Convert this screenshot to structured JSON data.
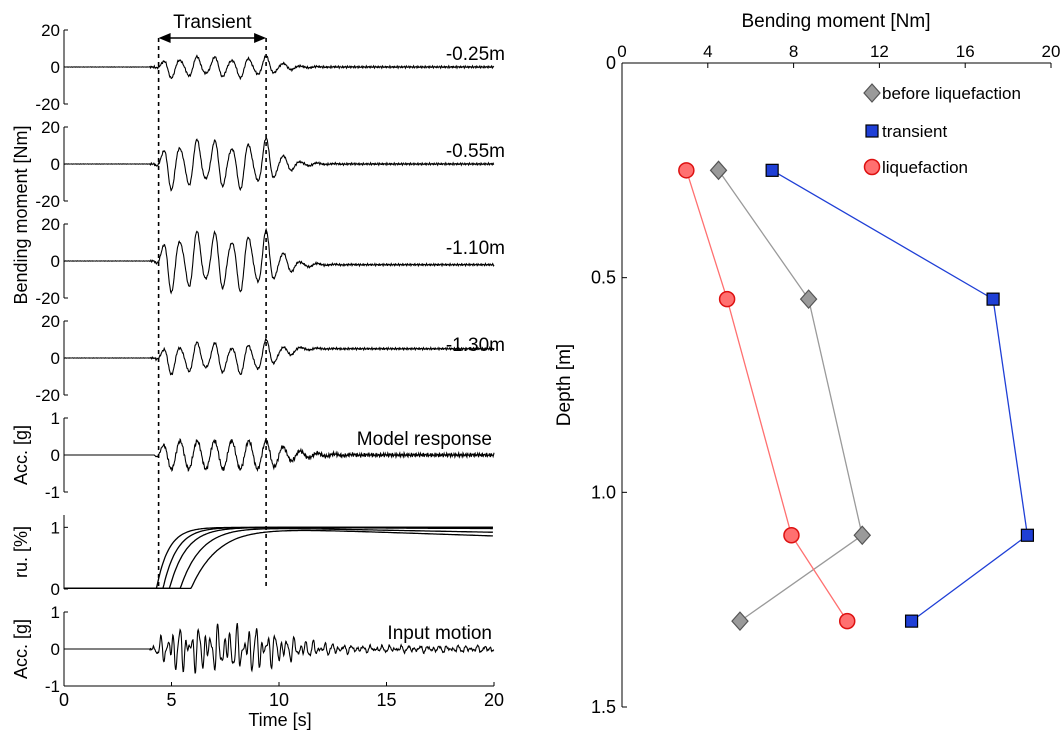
{
  "chart_data": [
    {
      "type": "line",
      "panel": "time-histories",
      "shared_xlabel": "Time [s]",
      "xlim": [
        0,
        20
      ],
      "xticks": [
        0,
        5,
        10,
        15,
        20
      ],
      "transient_label": "Transient",
      "transient_window": [
        4.4,
        9.4
      ],
      "shared_ylabel": "Bending moment [Nm]",
      "subplots": [
        {
          "label": "-0.25m",
          "ylim": [
            -20,
            20
          ],
          "yticks": [
            20,
            0,
            -20
          ],
          "amplitude": 6,
          "offset": 0
        },
        {
          "label": "-0.55m",
          "ylim": [
            -20,
            20
          ],
          "yticks": [
            20,
            0,
            -20
          ],
          "amplitude": 14,
          "offset": 0
        },
        {
          "label": "-1.10m",
          "ylim": [
            -20,
            20
          ],
          "yticks": [
            20,
            0,
            -20
          ],
          "amplitude": 17,
          "offset": -2
        },
        {
          "label": "-1.30m",
          "ylim": [
            -20,
            20
          ],
          "yticks": [
            20,
            0,
            -20
          ],
          "amplitude": 9,
          "offset": 5
        },
        {
          "label": "Model response",
          "ylabel": "Acc. [g]",
          "ylim": [
            -1,
            1
          ],
          "yticks": [
            1,
            0,
            -1
          ],
          "amplitude": 0.4
        },
        {
          "label": "",
          "ylabel": "ru. [%]",
          "ylim": [
            0,
            1.2
          ],
          "yticks": [
            1,
            0
          ],
          "series_count": 5
        },
        {
          "label": "Input motion",
          "ylabel": "Acc. [g]",
          "ylim": [
            -1,
            1
          ],
          "yticks": [
            1,
            0,
            -1
          ],
          "amplitude": 0.5
        }
      ]
    },
    {
      "type": "line",
      "panel": "profile",
      "title": "Bending moment [Nm]",
      "xlabel": "Bending moment [Nm]",
      "ylabel": "Depth [m]",
      "xlim": [
        0,
        20
      ],
      "ylim": [
        0,
        1.5
      ],
      "xticks": [
        0,
        4,
        8,
        12,
        16,
        20
      ],
      "yticks": [
        "0",
        "0.5",
        "1.0",
        "1.5"
      ],
      "y_inverted": true,
      "legend_position": "top-right",
      "series": [
        {
          "name": "before liquefaction",
          "color": "#9a9a9a",
          "marker": "diamond",
          "points": [
            [
              4.5,
              0.25
            ],
            [
              8.7,
              0.55
            ],
            [
              11.2,
              1.1
            ],
            [
              5.5,
              1.3
            ]
          ]
        },
        {
          "name": "transient",
          "color": "#1f3fd6",
          "marker": "square",
          "points": [
            [
              7.0,
              0.25
            ],
            [
              17.3,
              0.55
            ],
            [
              18.9,
              1.1
            ],
            [
              13.5,
              1.3
            ]
          ]
        },
        {
          "name": "liquefaction",
          "color": "#ff7070",
          "marker": "circle",
          "points": [
            [
              3.0,
              0.25
            ],
            [
              4.9,
              0.55
            ],
            [
              7.9,
              1.1
            ],
            [
              10.5,
              1.3
            ]
          ]
        }
      ]
    }
  ]
}
